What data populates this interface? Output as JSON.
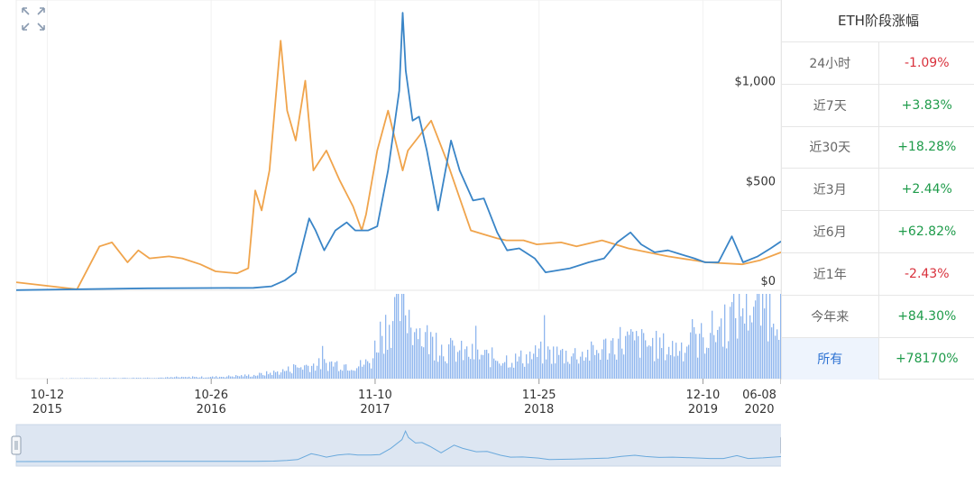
{
  "chart_data": {
    "type": "line",
    "price_axis": {
      "ticks": [
        0,
        500,
        1000
      ],
      "labels": [
        "$0",
        "$500",
        "$1,000"
      ],
      "ylim": [
        0,
        1400
      ]
    },
    "x_axis": {
      "ticks": [
        {
          "date": "2015-10-12",
          "day": "10-12",
          "year": "2015"
        },
        {
          "date": "2016-10-26",
          "day": "10-26",
          "year": "2016"
        },
        {
          "date": "2017-11-10",
          "day": "11-10",
          "year": "2017"
        },
        {
          "date": "2018-11-25",
          "day": "11-25",
          "year": "2018"
        },
        {
          "date": "2019-12-10",
          "day": "12-10",
          "year": "2019"
        },
        {
          "date": "2020-06-08",
          "day": "06-08",
          "year": "2020"
        }
      ],
      "range": [
        "2015-08-01",
        "2020-06-08"
      ]
    },
    "series": [
      {
        "color": "#3a85c7",
        "x": [
          "2015-08-01",
          "2016-06-01",
          "2017-02-01",
          "2017-03-15",
          "2017-04-15",
          "2017-05-10",
          "2017-06-10",
          "2017-06-25",
          "2017-07-15",
          "2017-08-10",
          "2017-09-05",
          "2017-09-25",
          "2017-10-25",
          "2017-11-15",
          "2017-12-10",
          "2018-01-05",
          "2018-01-13",
          "2018-01-20",
          "2018-02-05",
          "2018-02-20",
          "2018-03-10",
          "2018-04-05",
          "2018-05-05",
          "2018-05-25",
          "2018-06-25",
          "2018-07-20",
          "2018-08-20",
          "2018-09-12",
          "2018-10-10",
          "2018-11-15",
          "2018-12-10",
          "2019-02-05",
          "2019-03-20",
          "2019-04-25",
          "2019-05-25",
          "2019-06-25",
          "2019-07-20",
          "2019-08-20",
          "2019-09-20",
          "2019-10-20",
          "2019-11-20",
          "2019-12-15",
          "2020-01-15",
          "2020-02-15",
          "2020-03-12",
          "2020-04-15",
          "2020-05-15",
          "2020-06-08"
        ],
        "y": [
          1,
          10,
          12,
          20,
          50,
          90,
          360,
          300,
          200,
          300,
          340,
          300,
          300,
          320,
          600,
          1000,
          1390,
          1100,
          850,
          870,
          700,
          400,
          750,
          600,
          450,
          460,
          290,
          200,
          210,
          160,
          90,
          110,
          140,
          160,
          240,
          290,
          230,
          190,
          200,
          180,
          160,
          140,
          140,
          270,
          140,
          170,
          210,
          245
        ]
      },
      {
        "color": "#f0a44c",
        "x": [
          "2015-08-01",
          "2015-12-20",
          "2016-02-10",
          "2016-03-10",
          "2016-04-15",
          "2016-05-10",
          "2016-06-05",
          "2016-07-20",
          "2016-08-20",
          "2016-10-01",
          "2016-11-05",
          "2016-12-25",
          "2017-01-20",
          "2017-02-05",
          "2017-02-20",
          "2017-03-10",
          "2017-04-05",
          "2017-04-20",
          "2017-05-10",
          "2017-06-01",
          "2017-06-20",
          "2017-07-20",
          "2017-08-20",
          "2017-09-20",
          "2017-10-10",
          "2017-10-20",
          "2017-11-15",
          "2017-12-10",
          "2018-01-13",
          "2018-01-25",
          "2018-03-20",
          "2018-04-25",
          "2018-06-20",
          "2018-07-20",
          "2018-08-20",
          "2018-09-10",
          "2018-10-20",
          "2018-11-20",
          "2019-01-15",
          "2019-02-20",
          "2019-04-20",
          "2019-06-20",
          "2019-09-20",
          "2019-12-20",
          "2020-03-10",
          "2020-04-20",
          "2020-06-08"
        ],
        "y": [
          40,
          5,
          220,
          240,
          140,
          200,
          160,
          170,
          160,
          130,
          95,
          85,
          110,
          500,
          400,
          600,
          1250,
          900,
          750,
          1050,
          600,
          700,
          550,
          420,
          300,
          380,
          700,
          900,
          600,
          700,
          850,
          650,
          300,
          280,
          260,
          250,
          250,
          230,
          240,
          220,
          250,
          210,
          170,
          140,
          130,
          150,
          190
        ]
      }
    ],
    "volume": {
      "color": "#8fb6ee",
      "x": [
        "2015-08-01",
        "2016-06-01",
        "2016-11-01",
        "2017-02-01",
        "2017-04-01",
        "2017-06-01",
        "2017-08-01",
        "2017-10-01",
        "2017-11-01",
        "2017-11-15",
        "2017-12-01",
        "2018-01-13",
        "2018-02-15",
        "2018-03-15",
        "2018-04-15",
        "2018-06-01",
        "2018-08-01",
        "2018-10-01",
        "2018-12-01",
        "2019-02-01",
        "2019-04-01",
        "2019-06-01",
        "2019-08-01",
        "2019-10-01",
        "2019-12-01",
        "2020-01-15",
        "2020-03-01",
        "2020-03-15",
        "2020-04-15",
        "2020-06-08"
      ],
      "y": [
        0,
        1,
        2,
        4,
        8,
        15,
        18,
        15,
        20,
        50,
        60,
        90,
        55,
        45,
        35,
        30,
        25,
        22,
        30,
        28,
        30,
        45,
        40,
        35,
        45,
        60,
        80,
        90,
        85,
        90
      ]
    }
  },
  "panel": {
    "title": "ETH阶段涨幅",
    "rows": [
      {
        "label": "24小时",
        "value": "-1.09%",
        "sign": "neg"
      },
      {
        "label": "近7天",
        "value": "+3.83%",
        "sign": "pos"
      },
      {
        "label": "近30天",
        "value": "+18.28%",
        "sign": "pos"
      },
      {
        "label": "近3月",
        "value": "+2.44%",
        "sign": "pos"
      },
      {
        "label": "近6月",
        "value": "+62.82%",
        "sign": "pos"
      },
      {
        "label": "近1年",
        "value": "-2.43%",
        "sign": "neg"
      },
      {
        "label": "今年来",
        "value": "+84.30%",
        "sign": "pos"
      },
      {
        "label": "所有",
        "value": "+78170%",
        "sign": "pos",
        "active": true
      }
    ]
  },
  "icons": {
    "expand": "expand-icon"
  }
}
